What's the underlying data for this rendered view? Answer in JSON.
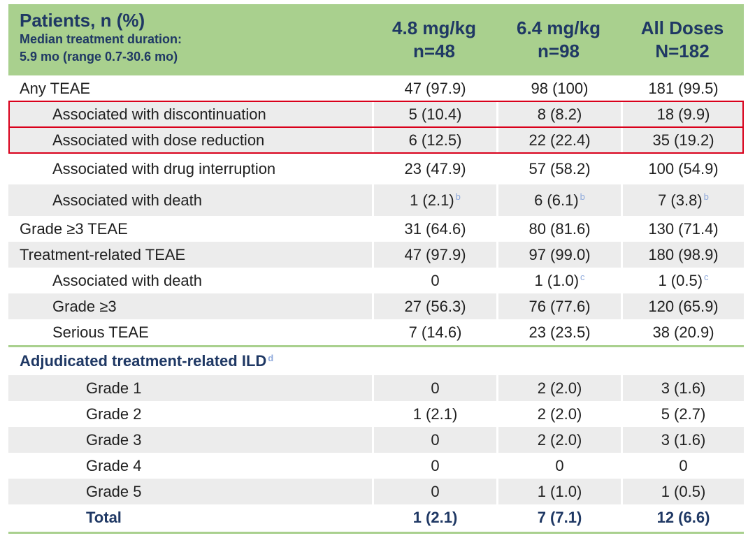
{
  "header": {
    "title": "Patients, n (%)",
    "subtitle_line1": "Median treatment duration:",
    "subtitle_line2": "5.9 mo (range 0.7-30.6 mo)",
    "columns": [
      {
        "dose": "4.8 mg/kg",
        "n": "n=48"
      },
      {
        "dose": "6.4 mg/kg",
        "n": "n=98"
      },
      {
        "dose": "All Doses",
        "n": "N=182"
      }
    ]
  },
  "rows": [
    {
      "label": "Any TEAE",
      "v": [
        "47 (97.9)",
        "98 (100)",
        "181 (99.5)"
      ]
    },
    {
      "label": "Associated with discontinuation",
      "v": [
        "5 (10.4)",
        "8 (8.2)",
        "18 (9.9)"
      ]
    },
    {
      "label": "Associated with dose reduction",
      "v": [
        "6 (12.5)",
        "22 (22.4)",
        "35 (19.2)"
      ]
    },
    {
      "label": "Associated with drug interruption",
      "v": [
        "23 (47.9)",
        "57 (58.2)",
        "100 (54.9)"
      ]
    },
    {
      "label": "Associated with death",
      "v": [
        "1 (2.1)",
        "6 (6.1)",
        "7 (3.8)"
      ],
      "sup": [
        "b",
        "b",
        "b"
      ]
    },
    {
      "label": "Grade ≥3 TEAE",
      "v": [
        "31 (64.6)",
        "80 (81.6)",
        "130 (71.4)"
      ]
    },
    {
      "label": "Treatment-related TEAE",
      "v": [
        "47 (97.9)",
        "97 (99.0)",
        "180 (98.9)"
      ]
    },
    {
      "label": "Associated with death",
      "v": [
        "0",
        "1 (1.0)",
        "1 (0.5)"
      ],
      "sup": [
        "",
        "c",
        "c"
      ]
    },
    {
      "label": "Grade ≥3",
      "v": [
        "27 (56.3)",
        "76 (77.6)",
        "120 (65.9)"
      ]
    },
    {
      "label": "Serious TEAE",
      "v": [
        "7 (14.6)",
        "23 (23.5)",
        "38 (20.9)"
      ]
    }
  ],
  "ild": {
    "title": "Adjudicated treatment-related ILD",
    "title_sup": "d",
    "rows": [
      {
        "label": "Grade 1",
        "v": [
          "0",
          "2 (2.0)",
          "3 (1.6)"
        ]
      },
      {
        "label": "Grade 2",
        "v": [
          "1 (2.1)",
          "2 (2.0)",
          "5 (2.7)"
        ]
      },
      {
        "label": "Grade 3",
        "v": [
          "0",
          "2 (2.0)",
          "3 (1.6)"
        ]
      },
      {
        "label": "Grade 4",
        "v": [
          "0",
          "0",
          "0"
        ]
      },
      {
        "label": "Grade 5",
        "v": [
          "0",
          "1 (1.0)",
          "1 (0.5)"
        ]
      },
      {
        "label": "Total",
        "v": [
          "1 (2.1)",
          "7 (7.1)",
          "12 (6.6)"
        ]
      }
    ]
  },
  "colors": {
    "header_bg": "#a9d08e",
    "highlight_border": "#d9001b",
    "title_text": "#1f3864",
    "row_shade": "#ececec"
  }
}
